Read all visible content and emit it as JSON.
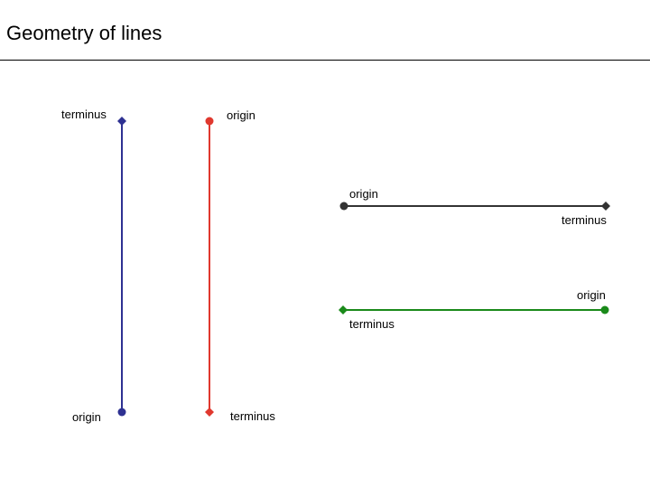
{
  "title": "Geometry of lines",
  "lines": [
    {
      "id": "blue",
      "color": "#2e3192",
      "origin": {
        "label": "origin"
      },
      "terminus": {
        "label": "terminus"
      }
    },
    {
      "id": "red",
      "color": "#e0382e",
      "origin": {
        "label": "origin"
      },
      "terminus": {
        "label": "terminus"
      }
    },
    {
      "id": "black",
      "color": "#333333",
      "origin": {
        "label": "origin"
      },
      "terminus": {
        "label": "terminus"
      }
    },
    {
      "id": "green",
      "color": "#1a8a1a",
      "origin": {
        "label": "origin"
      },
      "terminus": {
        "label": "terminus"
      }
    }
  ]
}
